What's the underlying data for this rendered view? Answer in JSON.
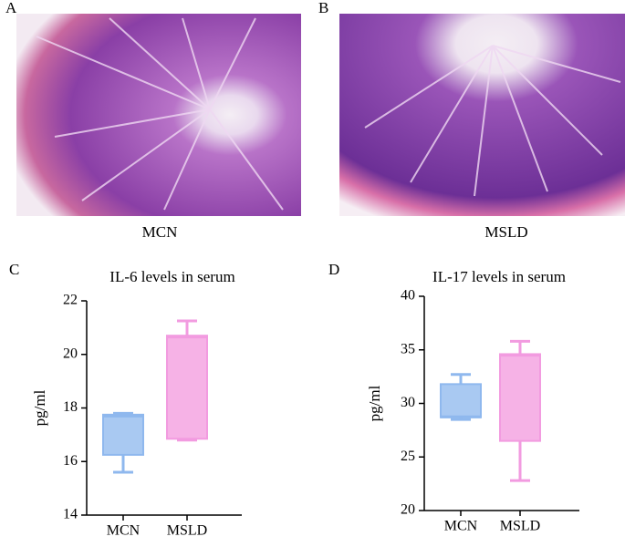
{
  "panels": [
    {
      "letter": "A",
      "caption": "MCN"
    },
    {
      "letter": "B",
      "caption": "MSLD"
    }
  ],
  "chart_data": [
    {
      "type": "box",
      "letter": "C",
      "title": "IL-6 levels in serum",
      "y_label": "pg/ml",
      "categories": [
        "MCN",
        "MSLD"
      ],
      "boxes": [
        {
          "min": 15.6,
          "q1": 16.25,
          "median": 17.7,
          "q3": 17.75,
          "max": 17.8,
          "color": "#a9c9f2",
          "edge": "#8fb8ee"
        },
        {
          "min": 16.8,
          "q1": 16.85,
          "median": 20.65,
          "q3": 20.7,
          "max": 21.25,
          "color": "#f6b2e6",
          "edge": "#f29be0"
        }
      ],
      "ylim": [
        14,
        22
      ],
      "yticks": [
        14,
        16,
        18,
        20,
        22
      ]
    },
    {
      "type": "box",
      "letter": "D",
      "title": "IL-17 levels in serum",
      "y_label": "pg/ml",
      "categories": [
        "MCN",
        "MSLD"
      ],
      "boxes": [
        {
          "min": 28.5,
          "q1": 28.7,
          "median": 28.75,
          "q3": 31.8,
          "max": 32.7,
          "color": "#a9c9f2",
          "edge": "#8fb8ee"
        },
        {
          "min": 22.8,
          "q1": 26.5,
          "median": 34.5,
          "q3": 34.6,
          "max": 35.8,
          "color": "#f6b2e6",
          "edge": "#f29be0"
        }
      ],
      "ylim": [
        20,
        40
      ],
      "yticks": [
        20,
        25,
        30,
        35,
        40
      ]
    }
  ]
}
